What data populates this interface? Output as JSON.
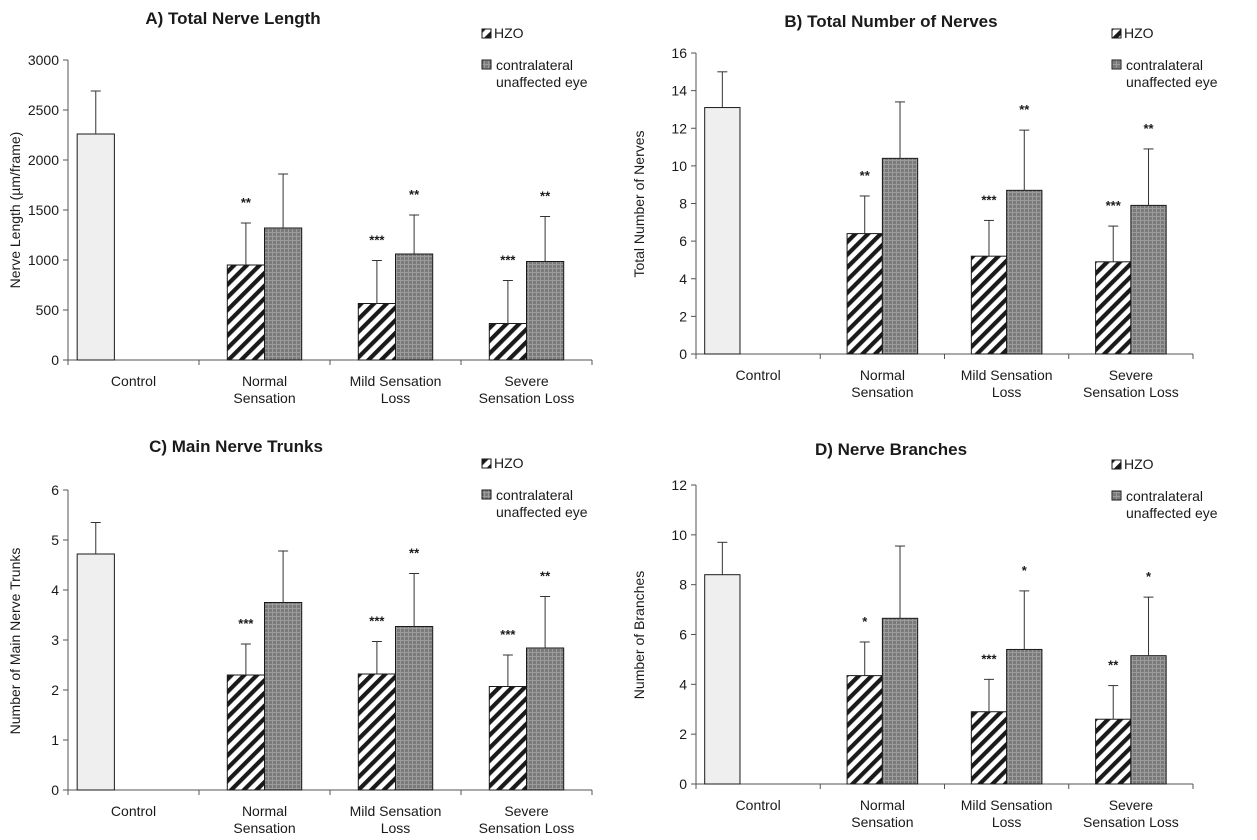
{
  "legend": {
    "hzo": "HZO",
    "contra_line1": "contralateral",
    "contra_line2": "unaffected eye"
  },
  "colors": {
    "control_fill": "#efefef",
    "contra_fill": "#7a7a7a",
    "contra_grid": "#9c9c9c",
    "stroke": "#1a1a1a"
  },
  "chart_data": [
    {
      "type": "bar",
      "title": "A) Total Nerve Length",
      "ylabel": "Nerve Length (µm/frame)",
      "xlabel": "",
      "ylim": [
        0,
        3000
      ],
      "yticks": [
        0,
        500,
        1000,
        1500,
        2000,
        2500,
        3000
      ],
      "categories": [
        [
          "Control"
        ],
        [
          "Normal",
          "Sensation"
        ],
        [
          "Mild Sensation",
          "Loss"
        ],
        [
          "Severe",
          "Sensation Loss"
        ]
      ],
      "series": [
        {
          "name": "Control",
          "values": [
            2260,
            null,
            null,
            null
          ],
          "errors": [
            430,
            null,
            null,
            null
          ]
        },
        {
          "name": "HZO",
          "values": [
            null,
            950,
            565,
            365
          ],
          "errors": [
            null,
            420,
            430,
            430
          ],
          "significance": [
            null,
            "**",
            "***",
            "***"
          ]
        },
        {
          "name": "contralateral unaffected eye",
          "values": [
            null,
            1320,
            1060,
            985
          ],
          "errors": [
            null,
            540,
            390,
            450
          ],
          "significance": [
            null,
            "",
            "**",
            "**"
          ]
        }
      ],
      "grid": false,
      "legend_position": "top-right"
    },
    {
      "type": "bar",
      "title": "B) Total Number of Nerves",
      "ylabel": "Total Number of Nerves",
      "xlabel": "",
      "ylim": [
        0,
        16
      ],
      "yticks": [
        0,
        2,
        4,
        6,
        8,
        10,
        12,
        14,
        16
      ],
      "categories": [
        [
          "Control"
        ],
        [
          "Normal",
          "Sensation"
        ],
        [
          "Mild Sensation",
          "Loss"
        ],
        [
          "Severe",
          "Sensation Loss"
        ]
      ],
      "series": [
        {
          "name": "Control",
          "values": [
            13.1,
            null,
            null,
            null
          ],
          "errors": [
            1.9,
            null,
            null,
            null
          ]
        },
        {
          "name": "HZO",
          "values": [
            null,
            6.4,
            5.2,
            4.9
          ],
          "errors": [
            null,
            2.0,
            1.9,
            1.9
          ],
          "significance": [
            null,
            "**",
            "***",
            "***"
          ]
        },
        {
          "name": "contralateral unaffected eye",
          "values": [
            null,
            10.4,
            8.7,
            7.9
          ],
          "errors": [
            null,
            3.0,
            3.2,
            3.0
          ],
          "significance": [
            null,
            "",
            "**",
            "**"
          ]
        }
      ],
      "grid": false,
      "legend_position": "top-right"
    },
    {
      "type": "bar",
      "title": "C) Main Nerve Trunks",
      "ylabel": "Number of Main Nerve Trunks",
      "xlabel": "",
      "ylim": [
        0,
        6
      ],
      "yticks": [
        0,
        1,
        2,
        3,
        4,
        5,
        6
      ],
      "categories": [
        [
          "Control"
        ],
        [
          "Normal",
          "Sensation"
        ],
        [
          "Mild Sensation",
          "Loss"
        ],
        [
          "Severe",
          "Sensation Loss"
        ]
      ],
      "series": [
        {
          "name": "Control",
          "values": [
            4.72,
            null,
            null,
            null
          ],
          "errors": [
            0.63,
            null,
            null,
            null
          ]
        },
        {
          "name": "HZO",
          "values": [
            null,
            2.3,
            2.32,
            2.07
          ],
          "errors": [
            null,
            0.62,
            0.65,
            0.63
          ],
          "significance": [
            null,
            "***",
            "***",
            "***"
          ]
        },
        {
          "name": "contralateral unaffected eye",
          "values": [
            null,
            3.75,
            3.27,
            2.84
          ],
          "errors": [
            null,
            1.03,
            1.06,
            1.03
          ],
          "significance": [
            null,
            "",
            "**",
            "**"
          ]
        }
      ],
      "grid": false,
      "legend_position": "top-right"
    },
    {
      "type": "bar",
      "title": "D) Nerve Branches",
      "ylabel": "Number of Branches",
      "xlabel": "",
      "ylim": [
        0,
        12
      ],
      "yticks": [
        0,
        2,
        4,
        6,
        8,
        10,
        12
      ],
      "categories": [
        [
          "Control"
        ],
        [
          "Normal",
          "Sensation"
        ],
        [
          "Mild Sensation",
          "Loss"
        ],
        [
          "Severe",
          "Sensation Loss"
        ]
      ],
      "series": [
        {
          "name": "Control",
          "values": [
            8.4,
            null,
            null,
            null
          ],
          "errors": [
            1.3,
            null,
            null,
            null
          ]
        },
        {
          "name": "HZO",
          "values": [
            null,
            4.35,
            2.9,
            2.6
          ],
          "errors": [
            null,
            1.35,
            1.3,
            1.35
          ],
          "significance": [
            null,
            "*",
            "***",
            "**"
          ]
        },
        {
          "name": "contralateral unaffected eye",
          "values": [
            null,
            6.65,
            5.4,
            5.15
          ],
          "errors": [
            null,
            2.9,
            2.35,
            2.35
          ],
          "significance": [
            null,
            "",
            "*",
            "*"
          ]
        }
      ],
      "grid": false,
      "legend_position": "top-right"
    }
  ]
}
